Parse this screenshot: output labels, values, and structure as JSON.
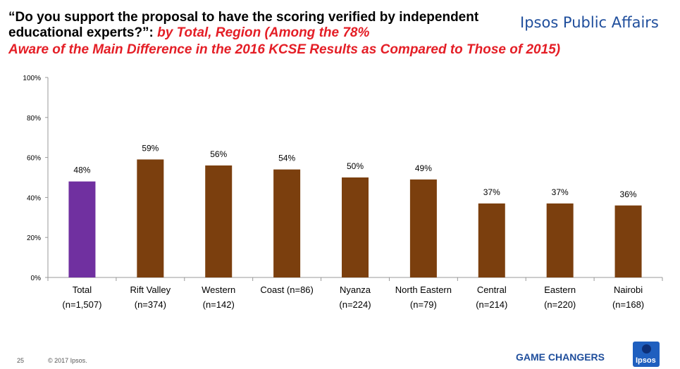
{
  "title": {
    "question": "“Do you support the proposal to have the scoring verified by independent educational experts?”:",
    "subtitle_part1": "by Total, Region (Among the 78%",
    "subtitle_part2": "Aware of the Main Difference in the 2016 KCSE Results as Compared to Those of 2015)"
  },
  "brand": "Ipsos Public Affairs",
  "footer": {
    "page": "25",
    "copyright": "© 2017 Ipsos.",
    "tagline": "GAME CHANGERS",
    "logo": "Ipsos"
  },
  "chart_data": {
    "type": "bar",
    "categories": [
      [
        "Total",
        "(n=1,507)"
      ],
      [
        "Rift Valley",
        "(n=374)"
      ],
      [
        "Western",
        "(n=142)"
      ],
      [
        "Coast (n=86)",
        ""
      ],
      [
        "Nyanza",
        "(n=224)"
      ],
      [
        "North Eastern",
        "(n=79)"
      ],
      [
        "Central",
        "(n=214)"
      ],
      [
        "Eastern",
        "(n=220)"
      ],
      [
        "Nairobi",
        "(n=168)"
      ]
    ],
    "values": [
      48,
      59,
      56,
      54,
      50,
      49,
      37,
      37,
      36
    ],
    "value_labels": [
      "48%",
      "59%",
      "56%",
      "54%",
      "50%",
      "49%",
      "37%",
      "37%",
      "36%"
    ],
    "colors": [
      "#7030a0",
      "#7b3f0e",
      "#7b3f0e",
      "#7b3f0e",
      "#7b3f0e",
      "#7b3f0e",
      "#7b3f0e",
      "#7b3f0e",
      "#7b3f0e"
    ],
    "yticks": [
      "0%",
      "20%",
      "40%",
      "60%",
      "80%",
      "100%"
    ],
    "ylim": [
      0,
      100
    ],
    "grid": false
  }
}
